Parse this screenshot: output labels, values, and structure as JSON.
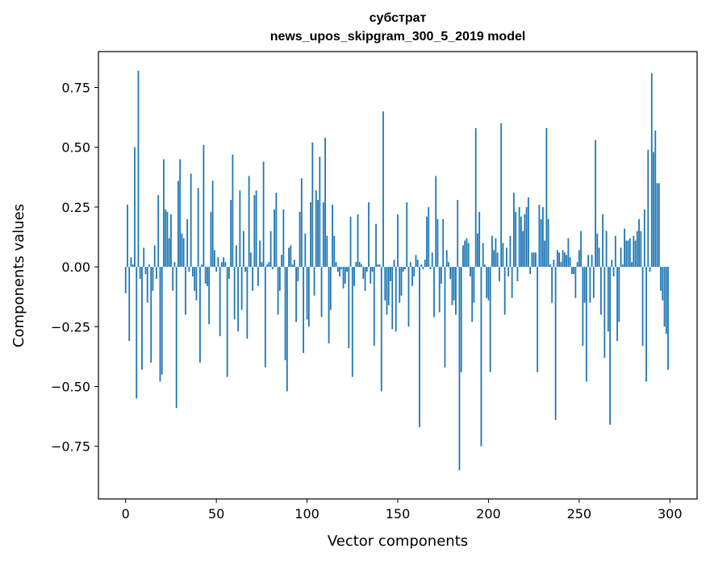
{
  "chart_data": {
    "type": "bar",
    "title": "субстрат",
    "subtitle": "news_upos_skipgram_300_5_2019 model",
    "xlabel": "Vector components",
    "ylabel": "Components values",
    "xlim": [
      -15,
      315
    ],
    "ylim": [
      -0.97,
      0.9
    ],
    "xticks": [
      0,
      50,
      100,
      150,
      200,
      250,
      300
    ],
    "xtick_labels": [
      "0",
      "50",
      "100",
      "150",
      "200",
      "250",
      "300"
    ],
    "yticks": [
      -0.75,
      -0.5,
      -0.25,
      0.0,
      0.25,
      0.5,
      0.75
    ],
    "ytick_labels": [
      "−0.75",
      "−0.50",
      "−0.25",
      "0.00",
      "0.25",
      "0.50",
      "0.75"
    ],
    "grid": false,
    "bar_color": "#1f77b4",
    "x": [
      0,
      1,
      2,
      3,
      4,
      5,
      6,
      7,
      8,
      9,
      10,
      11,
      12,
      13,
      14,
      15,
      16,
      17,
      18,
      19,
      20,
      21,
      22,
      23,
      24,
      25,
      26,
      27,
      28,
      29,
      30,
      31,
      32,
      33,
      34,
      35,
      36,
      37,
      38,
      39,
      40,
      41,
      42,
      43,
      44,
      45,
      46,
      47,
      48,
      49,
      50,
      51,
      52,
      53,
      54,
      55,
      56,
      57,
      58,
      59,
      60,
      61,
      62,
      63,
      64,
      65,
      66,
      67,
      68,
      69,
      70,
      71,
      72,
      73,
      74,
      75,
      76,
      77,
      78,
      79,
      80,
      81,
      82,
      83,
      84,
      85,
      86,
      87,
      88,
      89,
      90,
      91,
      92,
      93,
      94,
      95,
      96,
      97,
      98,
      99,
      100,
      101,
      102,
      103,
      104,
      105,
      106,
      107,
      108,
      109,
      110,
      111,
      112,
      113,
      114,
      115,
      116,
      117,
      118,
      119,
      120,
      121,
      122,
      123,
      124,
      125,
      126,
      127,
      128,
      129,
      130,
      131,
      132,
      133,
      134,
      135,
      136,
      137,
      138,
      139,
      140,
      141,
      142,
      143,
      144,
      145,
      146,
      147,
      148,
      149,
      150,
      151,
      152,
      153,
      154,
      155,
      156,
      157,
      158,
      159,
      160,
      161,
      162,
      163,
      164,
      165,
      166,
      167,
      168,
      169,
      170,
      171,
      172,
      173,
      174,
      175,
      176,
      177,
      178,
      179,
      180,
      181,
      182,
      183,
      184,
      185,
      186,
      187,
      188,
      189,
      190,
      191,
      192,
      193,
      194,
      195,
      196,
      197,
      198,
      199,
      200,
      201,
      202,
      203,
      204,
      205,
      206,
      207,
      208,
      209,
      210,
      211,
      212,
      213,
      214,
      215,
      216,
      217,
      218,
      219,
      220,
      221,
      222,
      223,
      224,
      225,
      226,
      227,
      228,
      229,
      230,
      231,
      232,
      233,
      234,
      235,
      236,
      237,
      238,
      239,
      240,
      241,
      242,
      243,
      244,
      245,
      246,
      247,
      248,
      249,
      250,
      251,
      252,
      253,
      254,
      255,
      256,
      257,
      258,
      259,
      260,
      261,
      262,
      263,
      264,
      265,
      266,
      267,
      268,
      269,
      270,
      271,
      272,
      273,
      274,
      275,
      276,
      277,
      278,
      279,
      280,
      281,
      282,
      283,
      284,
      285,
      286,
      287,
      288,
      289,
      290,
      291,
      292,
      293,
      294,
      295,
      296,
      297,
      298,
      299
    ],
    "values": [
      -0.11,
      0.26,
      -0.31,
      0.04,
      0.01,
      0.5,
      -0.55,
      0.82,
      -0.05,
      -0.43,
      0.08,
      -0.03,
      -0.15,
      0.01,
      -0.4,
      -0.1,
      0.09,
      -0.05,
      0.3,
      -0.48,
      -0.45,
      0.45,
      0.24,
      0.23,
      0.12,
      0.22,
      -0.1,
      0.02,
      -0.59,
      0.36,
      0.45,
      0.14,
      0.12,
      -0.2,
      0.2,
      -0.02,
      0.39,
      -0.04,
      -0.1,
      -0.14,
      0.33,
      -0.4,
      0.01,
      0.51,
      -0.07,
      -0.08,
      -0.24,
      0.23,
      0.36,
      0.07,
      -0.02,
      0.04,
      -0.29,
      0.02,
      0.04,
      0.02,
      -0.46,
      -0.05,
      0.28,
      0.47,
      -0.22,
      0.09,
      -0.27,
      0.32,
      -0.18,
      0.15,
      -0.02,
      -0.3,
      0.38,
      0.06,
      -0.1,
      0.3,
      0.32,
      -0.08,
      0.11,
      0.02,
      0.44,
      -0.42,
      0.01,
      0.02,
      0.15,
      -0.01,
      0.24,
      0.31,
      -0.2,
      -0.1,
      0.05,
      0.24,
      -0.39,
      -0.52,
      0.08,
      0.09,
      0.01,
      0.03,
      -0.23,
      -0.06,
      0.23,
      0.37,
      -0.36,
      0.14,
      -0.22,
      -0.25,
      0.27,
      0.52,
      -0.12,
      0.32,
      0.28,
      0.46,
      -0.21,
      0.27,
      0.54,
      0.13,
      -0.32,
      -0.18,
      0.26,
      0.13,
      0.02,
      -0.02,
      -0.04,
      -0.01,
      -0.09,
      -0.07,
      -0.02,
      -0.34,
      0.21,
      -0.46,
      -0.08,
      0.02,
      0.22,
      0.02,
      0.01,
      -0.05,
      -0.1,
      -0.02,
      0.27,
      -0.07,
      -0.02,
      -0.33,
      0.18,
      0.01,
      0.01,
      -0.52,
      0.65,
      -0.14,
      -0.2,
      -0.16,
      -0.06,
      -0.26,
      0.03,
      -0.27,
      0.22,
      -0.15,
      -0.12,
      -0.02,
      -0.01,
      0.27,
      -0.25,
      0.02,
      -0.08,
      -0.04,
      0.05,
      0.03,
      -0.67,
      0.01,
      -0.01,
      0.03,
      0.21,
      0.25,
      -0.01,
      0.06,
      -0.21,
      0.38,
      0.2,
      -0.19,
      -0.07,
      0.2,
      -0.42,
      0.07,
      0.02,
      -0.05,
      -0.16,
      -0.14,
      -0.2,
      0.28,
      -0.85,
      -0.44,
      0.09,
      0.11,
      0.12,
      0.1,
      -0.04,
      -0.23,
      -0.15,
      0.58,
      0.14,
      0.23,
      -0.75,
      0.1,
      0.01,
      -0.13,
      -0.14,
      -0.44,
      0.13,
      0.07,
      0.12,
      0.06,
      -0.06,
      0.6,
      0.1,
      -0.2,
      0.08,
      -0.04,
      0.13,
      -0.13,
      0.31,
      0.23,
      -0.06,
      0.25,
      0.21,
      0.15,
      0.22,
      0.25,
      0.29,
      -0.03,
      0.06,
      0.06,
      0.06,
      -0.44,
      0.26,
      0.2,
      0.25,
      0.11,
      0.58,
      0.2,
      0.01,
      -0.15,
      0.03,
      -0.64,
      0.07,
      0.06,
      0.02,
      0.07,
      0.06,
      0.05,
      0.12,
      0.04,
      -0.03,
      -0.03,
      -0.13,
      0.02,
      0.07,
      0.15,
      -0.33,
      -0.15,
      -0.48,
      0.05,
      -0.15,
      0.05,
      -0.13,
      0.53,
      0.14,
      0.08,
      -0.2,
      0.22,
      -0.38,
      0.15,
      -0.27,
      -0.66,
      0.03,
      -0.04,
      0.13,
      -0.31,
      -0.23,
      0.08,
      0.01,
      0.16,
      0.11,
      0.11,
      0.12,
      0.02,
      0.13,
      0.11,
      0.15,
      0.2,
      0.15,
      -0.33,
      0.24,
      -0.48,
      0.49,
      -0.02,
      0.81,
      0.48,
      0.57,
      0.35,
      0.35,
      -0.1,
      -0.14,
      -0.25,
      -0.28,
      -0.43
    ]
  }
}
